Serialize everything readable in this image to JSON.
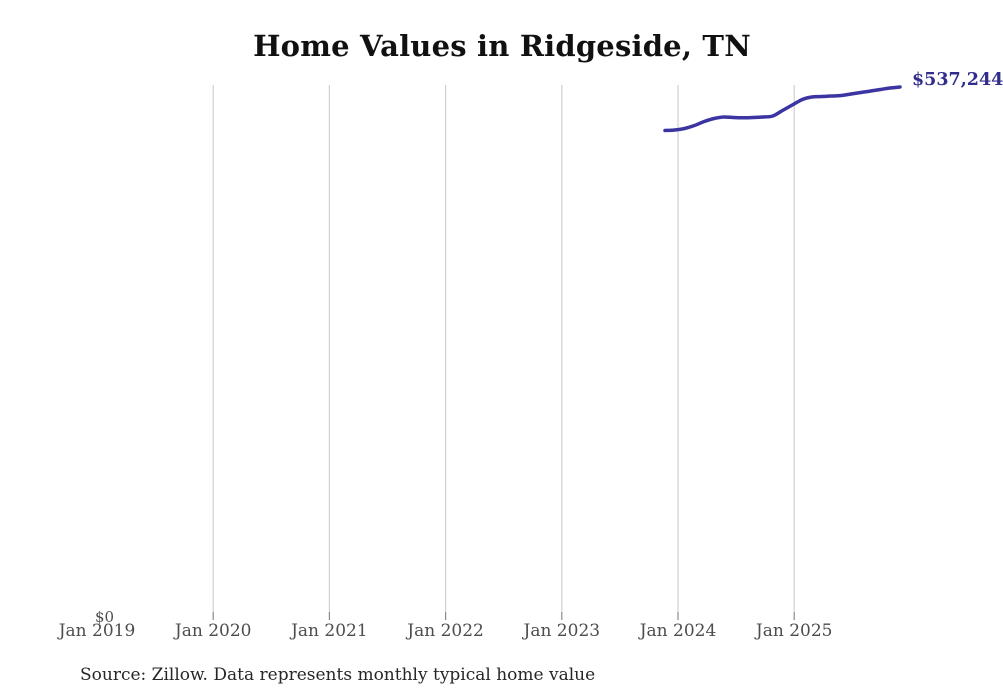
{
  "chart": {
    "title": "Home Values in Ridgeside, TN",
    "y_zero_label": "$0",
    "end_value_label": "$537,244",
    "source_note": "Source: Zillow. Data represents monthly typical home value",
    "colors": {
      "line": "#3b34a2",
      "end_label": "#312d8c",
      "gridline": "#d0d0d0",
      "tick": "#8a8a8a",
      "axis_label": "#4d4d4d",
      "title": "#111111",
      "source": "#262626"
    }
  },
  "chart_data": {
    "type": "line",
    "title": "Home Values in Ridgeside, TN",
    "xlabel": "",
    "ylabel": "",
    "x_ticks": [
      "Jan 2019",
      "Jan 2020",
      "Jan 2021",
      "Jan 2022",
      "Jan 2023",
      "Jan 2024",
      "Jan 2025"
    ],
    "grid": "vertical-only",
    "legend": "none",
    "ylim": [
      0,
      540000
    ],
    "x": [
      "Nov 2023",
      "Dec 2023",
      "Jan 2024",
      "Feb 2024",
      "Mar 2024",
      "Apr 2024",
      "May 2024",
      "Jun 2024",
      "Jul 2024",
      "Aug 2024",
      "Sep 2024",
      "Oct 2024",
      "Nov 2024",
      "Dec 2024",
      "Jan 2025",
      "Feb 2025",
      "Mar 2025",
      "Apr 2025",
      "May 2025",
      "Jun 2025",
      "Jul 2025",
      "Aug 2025",
      "Sep 2025",
      "Oct 2025",
      "Nov 2025"
    ],
    "series": [
      {
        "name": "Monthly typical home value",
        "values": [
          492700,
          493200,
          494800,
          497800,
          501900,
          505000,
          506500,
          506000,
          505700,
          506000,
          506500,
          507600,
          513200,
          518800,
          524400,
          527000,
          527500,
          528000,
          528500,
          530100,
          531600,
          533100,
          534700,
          536200,
          537244
        ]
      }
    ],
    "annotations": [
      {
        "text": "$537,244",
        "position": "end-of-line"
      },
      {
        "text": "$0",
        "position": "y-axis-bottom"
      }
    ]
  }
}
